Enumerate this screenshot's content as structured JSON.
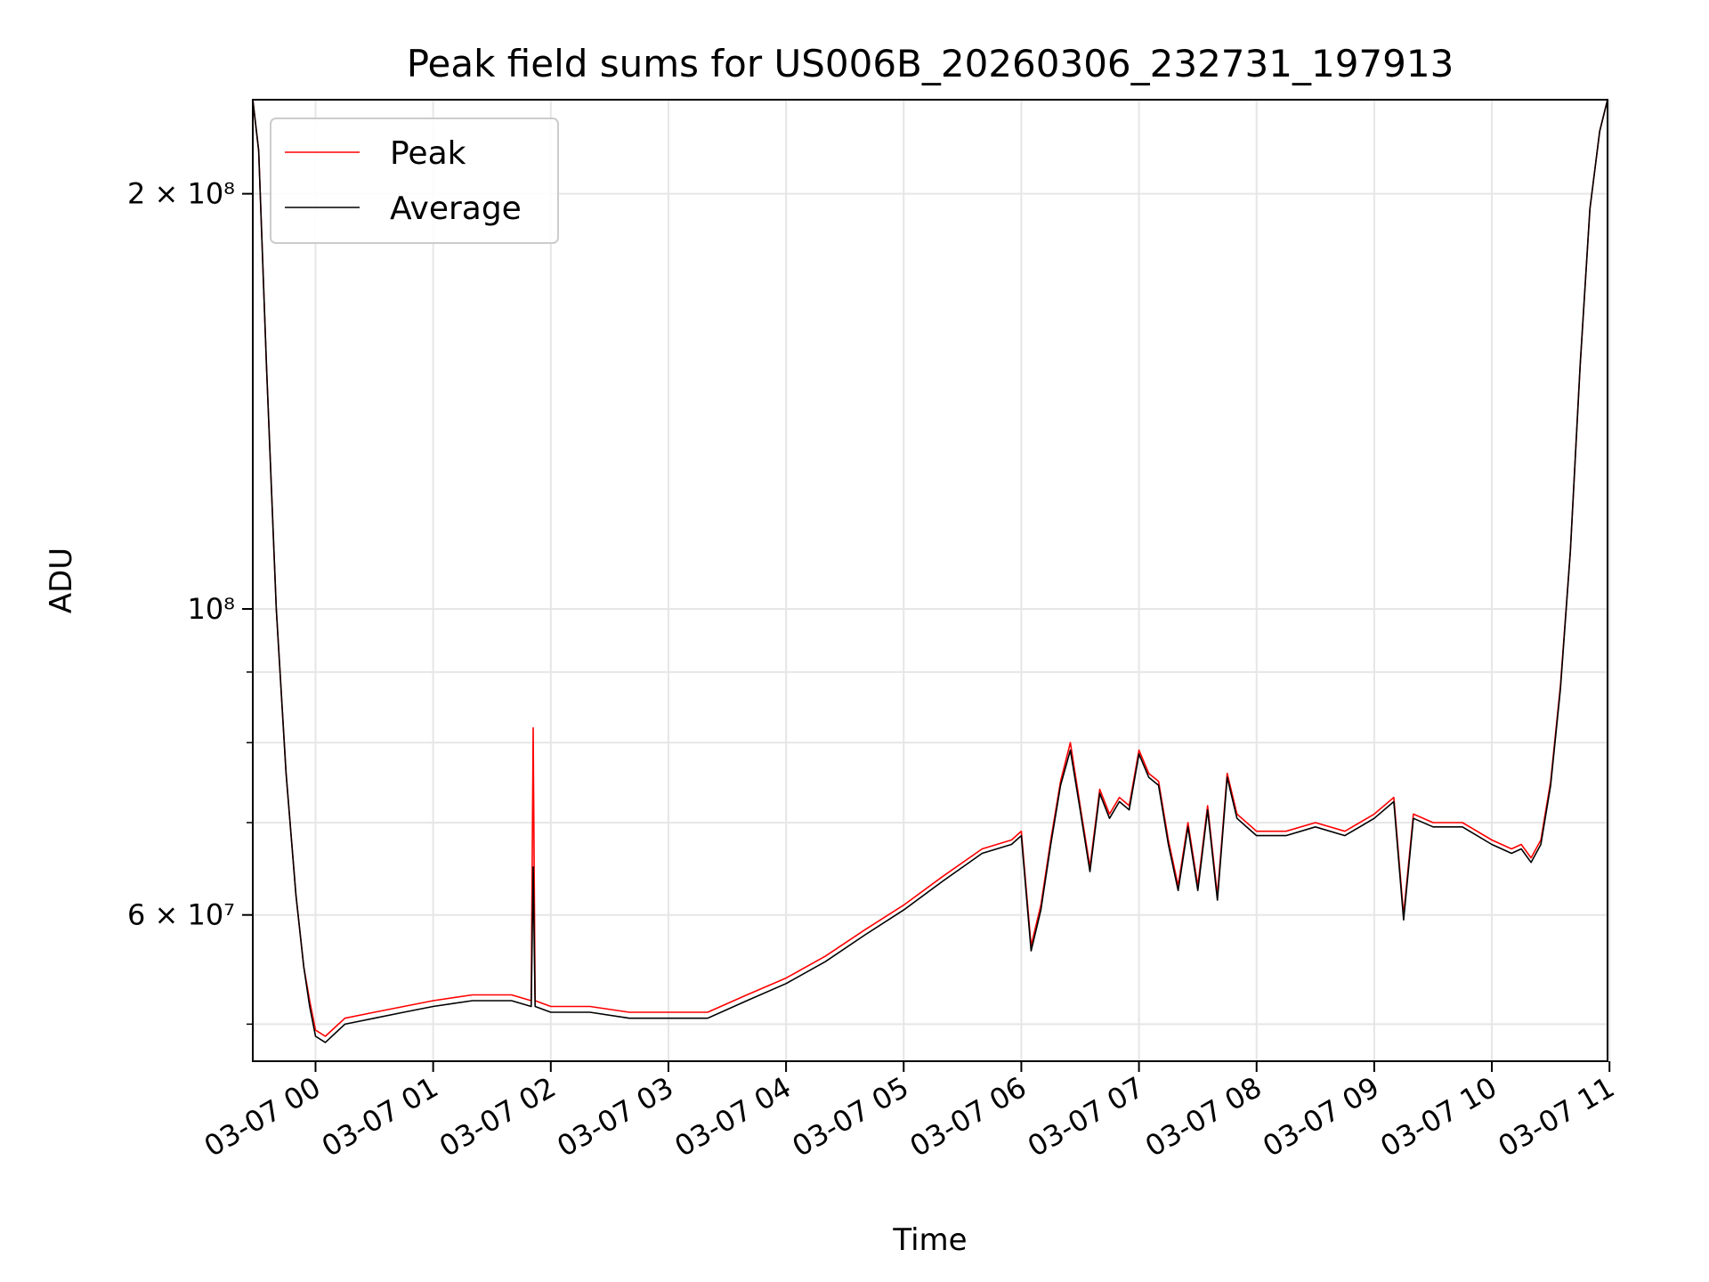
{
  "chart_data": {
    "type": "line",
    "title": "Peak field sums for US006B_20260306_232731_197913",
    "xlabel": "Time",
    "ylabel": "ADU",
    "yscale": "log",
    "xlim": [
      "2026-03-06 23:28",
      "2026-03-07 10:59"
    ],
    "ylim": [
      47000000,
      234000000
    ],
    "grid": true,
    "legend_position": "top-left",
    "x_ticks": [
      "03-07 00",
      "03-07 01",
      "03-07 02",
      "03-07 03",
      "03-07 04",
      "03-07 05",
      "03-07 06",
      "03-07 07",
      "03-07 08",
      "03-07 09",
      "03-07 10",
      "03-07 11"
    ],
    "y_ticks_major": [
      "2 × 10⁸",
      "10⁸",
      "6 × 10⁷"
    ],
    "y_tick_values": [
      200000000,
      100000000,
      60000000
    ],
    "series": [
      {
        "name": "Peak",
        "color": "#ff0000",
        "x": [
          "2026-03-06 23:28",
          "2026-03-06 23:31",
          "2026-03-06 23:35",
          "2026-03-06 23:40",
          "2026-03-06 23:45",
          "2026-03-06 23:50",
          "2026-03-06 23:54",
          "2026-03-06 23:57",
          "2026-03-07 00:00",
          "2026-03-07 00:05",
          "2026-03-07 00:15",
          "2026-03-07 00:30",
          "2026-03-07 00:45",
          "2026-03-07 01:00",
          "2026-03-07 01:20",
          "2026-03-07 01:40",
          "2026-03-07 01:50",
          "2026-03-07 01:51",
          "2026-03-07 01:52",
          "2026-03-07 02:00",
          "2026-03-07 02:20",
          "2026-03-07 02:40",
          "2026-03-07 03:00",
          "2026-03-07 03:20",
          "2026-03-07 03:40",
          "2026-03-07 04:00",
          "2026-03-07 04:20",
          "2026-03-07 04:40",
          "2026-03-07 05:00",
          "2026-03-07 05:20",
          "2026-03-07 05:40",
          "2026-03-07 05:55",
          "2026-03-07 06:00",
          "2026-03-07 06:05",
          "2026-03-07 06:10",
          "2026-03-07 06:15",
          "2026-03-07 06:20",
          "2026-03-07 06:25",
          "2026-03-07 06:30",
          "2026-03-07 06:35",
          "2026-03-07 06:40",
          "2026-03-07 06:45",
          "2026-03-07 06:50",
          "2026-03-07 06:55",
          "2026-03-07 07:00",
          "2026-03-07 07:05",
          "2026-03-07 07:10",
          "2026-03-07 07:15",
          "2026-03-07 07:20",
          "2026-03-07 07:25",
          "2026-03-07 07:30",
          "2026-03-07 07:35",
          "2026-03-07 07:40",
          "2026-03-07 07:45",
          "2026-03-07 07:50",
          "2026-03-07 08:00",
          "2026-03-07 08:15",
          "2026-03-07 08:30",
          "2026-03-07 08:45",
          "2026-03-07 09:00",
          "2026-03-07 09:10",
          "2026-03-07 09:15",
          "2026-03-07 09:20",
          "2026-03-07 09:30",
          "2026-03-07 09:45",
          "2026-03-07 10:00",
          "2026-03-07 10:10",
          "2026-03-07 10:15",
          "2026-03-07 10:20",
          "2026-03-07 10:25",
          "2026-03-07 10:30",
          "2026-03-07 10:35",
          "2026-03-07 10:40",
          "2026-03-07 10:45",
          "2026-03-07 10:50",
          "2026-03-07 10:55",
          "2026-03-07 10:59"
        ],
        "y": [
          234000000,
          215000000,
          150000000,
          100000000,
          76000000,
          62000000,
          55000000,
          52000000,
          49500000,
          49000000,
          50500000,
          51000000,
          51500000,
          52000000,
          52500000,
          52500000,
          52000000,
          82000000,
          52000000,
          51500000,
          51500000,
          51000000,
          51000000,
          51000000,
          52500000,
          54000000,
          56000000,
          58500000,
          61000000,
          64000000,
          67000000,
          68000000,
          69000000,
          57000000,
          61000000,
          68000000,
          75000000,
          80000000,
          72000000,
          65000000,
          74000000,
          71000000,
          73000000,
          72000000,
          79000000,
          76000000,
          75000000,
          68000000,
          63000000,
          70000000,
          63000000,
          72000000,
          62000000,
          76000000,
          71000000,
          69000000,
          69000000,
          70000000,
          69000000,
          71000000,
          73000000,
          60000000,
          71000000,
          70000000,
          70000000,
          68000000,
          67000000,
          67500000,
          66000000,
          68000000,
          75000000,
          88000000,
          110000000,
          150000000,
          195000000,
          222000000,
          234000000
        ]
      },
      {
        "name": "Average",
        "color": "#000000",
        "x": [
          "2026-03-06 23:28",
          "2026-03-06 23:31",
          "2026-03-06 23:35",
          "2026-03-06 23:40",
          "2026-03-06 23:45",
          "2026-03-06 23:50",
          "2026-03-06 23:54",
          "2026-03-06 23:57",
          "2026-03-07 00:00",
          "2026-03-07 00:05",
          "2026-03-07 00:15",
          "2026-03-07 00:30",
          "2026-03-07 00:45",
          "2026-03-07 01:00",
          "2026-03-07 01:20",
          "2026-03-07 01:40",
          "2026-03-07 01:50",
          "2026-03-07 01:51",
          "2026-03-07 01:52",
          "2026-03-07 02:00",
          "2026-03-07 02:20",
          "2026-03-07 02:40",
          "2026-03-07 03:00",
          "2026-03-07 03:20",
          "2026-03-07 03:40",
          "2026-03-07 04:00",
          "2026-03-07 04:20",
          "2026-03-07 04:40",
          "2026-03-07 05:00",
          "2026-03-07 05:20",
          "2026-03-07 05:40",
          "2026-03-07 05:55",
          "2026-03-07 06:00",
          "2026-03-07 06:05",
          "2026-03-07 06:10",
          "2026-03-07 06:15",
          "2026-03-07 06:20",
          "2026-03-07 06:25",
          "2026-03-07 06:30",
          "2026-03-07 06:35",
          "2026-03-07 06:40",
          "2026-03-07 06:45",
          "2026-03-07 06:50",
          "2026-03-07 06:55",
          "2026-03-07 07:00",
          "2026-03-07 07:05",
          "2026-03-07 07:10",
          "2026-03-07 07:15",
          "2026-03-07 07:20",
          "2026-03-07 07:25",
          "2026-03-07 07:30",
          "2026-03-07 07:35",
          "2026-03-07 07:40",
          "2026-03-07 07:45",
          "2026-03-07 07:50",
          "2026-03-07 08:00",
          "2026-03-07 08:15",
          "2026-03-07 08:30",
          "2026-03-07 08:45",
          "2026-03-07 09:00",
          "2026-03-07 09:10",
          "2026-03-07 09:15",
          "2026-03-07 09:20",
          "2026-03-07 09:30",
          "2026-03-07 09:45",
          "2026-03-07 10:00",
          "2026-03-07 10:10",
          "2026-03-07 10:15",
          "2026-03-07 10:20",
          "2026-03-07 10:25",
          "2026-03-07 10:30",
          "2026-03-07 10:35",
          "2026-03-07 10:40",
          "2026-03-07 10:45",
          "2026-03-07 10:50",
          "2026-03-07 10:55",
          "2026-03-07 10:59"
        ],
        "y": [
          234000000,
          215000000,
          150000000,
          100000000,
          76000000,
          62000000,
          55000000,
          51500000,
          49000000,
          48500000,
          50000000,
          50500000,
          51000000,
          51500000,
          52000000,
          52000000,
          51500000,
          65000000,
          51500000,
          51000000,
          51000000,
          50500000,
          50500000,
          50500000,
          52000000,
          53500000,
          55500000,
          58000000,
          60500000,
          63500000,
          66500000,
          67500000,
          68500000,
          56500000,
          60500000,
          67500000,
          74500000,
          79000000,
          71500000,
          64500000,
          73500000,
          70500000,
          72500000,
          71500000,
          78500000,
          75500000,
          74500000,
          67500000,
          62500000,
          69500000,
          62500000,
          71500000,
          61500000,
          75500000,
          70500000,
          68500000,
          68500000,
          69500000,
          68500000,
          70500000,
          72500000,
          59500000,
          70500000,
          69500000,
          69500000,
          67500000,
          66500000,
          67000000,
          65500000,
          67500000,
          74500000,
          87500000,
          110000000,
          150000000,
          195000000,
          222000000,
          234000000
        ]
      }
    ]
  }
}
